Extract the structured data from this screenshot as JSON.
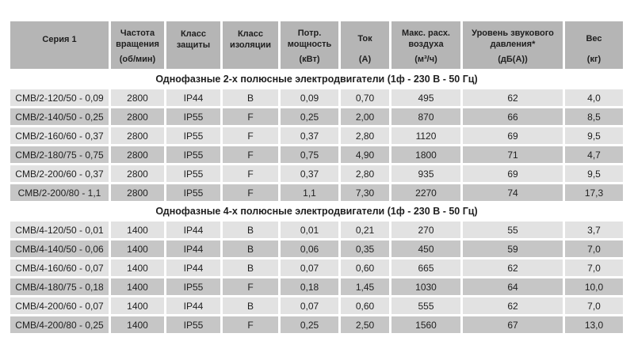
{
  "table": {
    "columns": [
      {
        "label": "Серия 1",
        "unit": ""
      },
      {
        "label": "Частота вращения",
        "unit": "(об/мин)"
      },
      {
        "label": "Класс защиты",
        "unit": ""
      },
      {
        "label": "Класс изоляции",
        "unit": ""
      },
      {
        "label": "Потр. мощность",
        "unit": "(кВт)"
      },
      {
        "label": "Ток",
        "unit": "(А)"
      },
      {
        "label": "Макс. расх. воздуха",
        "unit": "(м³/ч)"
      },
      {
        "label": "Уровень звукового давления*",
        "unit": "(дБ(А))"
      },
      {
        "label": "Вес",
        "unit": "(кг)"
      }
    ],
    "sections": [
      {
        "title": "Однофазные 2-х полюсные электродвигатели (1ф - 230 В - 50 Гц)",
        "rows": [
          [
            "CMB/2-120/50 - 0,09",
            "2800",
            "IP44",
            "B",
            "0,09",
            "0,70",
            "495",
            "62",
            "4,0"
          ],
          [
            "CMB/2-140/50 - 0,25",
            "2800",
            "IP55",
            "F",
            "0,25",
            "2,00",
            "870",
            "66",
            "8,5"
          ],
          [
            "CMB/2-160/60 - 0,37",
            "2800",
            "IP55",
            "F",
            "0,37",
            "2,80",
            "1120",
            "69",
            "9,5"
          ],
          [
            "CMB/2-180/75 - 0,75",
            "2800",
            "IP55",
            "F",
            "0,75",
            "4,90",
            "1800",
            "71",
            "4,7"
          ],
          [
            "CMB/2-200/60 - 0,37",
            "2800",
            "IP55",
            "F",
            "0,37",
            "2,80",
            "935",
            "69",
            "9,5"
          ],
          [
            "CMB/2-200/80 - 1,1",
            "2800",
            "IP55",
            "F",
            "1,1",
            "7,30",
            "2270",
            "74",
            "17,3"
          ]
        ]
      },
      {
        "title": "Однофазные 4-х полюсные электродвигатели (1ф - 230 В - 50 Гц)",
        "rows": [
          [
            "CMB/4-120/50 - 0,01",
            "1400",
            "IP44",
            "B",
            "0,01",
            "0,21",
            "270",
            "55",
            "3,7"
          ],
          [
            "CMB/4-140/50 - 0,06",
            "1400",
            "IP44",
            "B",
            "0,06",
            "0,35",
            "450",
            "59",
            "7,0"
          ],
          [
            "CMB/4-160/60 - 0,07",
            "1400",
            "IP44",
            "B",
            "0,07",
            "0,60",
            "665",
            "62",
            "7,0"
          ],
          [
            "CMB/4-180/75 - 0,18",
            "1400",
            "IP55",
            "F",
            "0,18",
            "1,45",
            "1030",
            "64",
            "10,0"
          ],
          [
            "CMB/4-200/60 - 0,07",
            "1400",
            "IP44",
            "B",
            "0,07",
            "0,60",
            "555",
            "62",
            "7,0"
          ],
          [
            "CMB/4-200/80 - 0,25",
            "1400",
            "IP55",
            "F",
            "0,25",
            "2,50",
            "1560",
            "67",
            "13,0"
          ]
        ]
      }
    ],
    "colors": {
      "header_bg": "#b5b5b5",
      "row_light": "#e2e2e2",
      "row_dark": "#c6c6c6",
      "page_bg": "#ffffff",
      "text": "#1f1f1f"
    }
  }
}
